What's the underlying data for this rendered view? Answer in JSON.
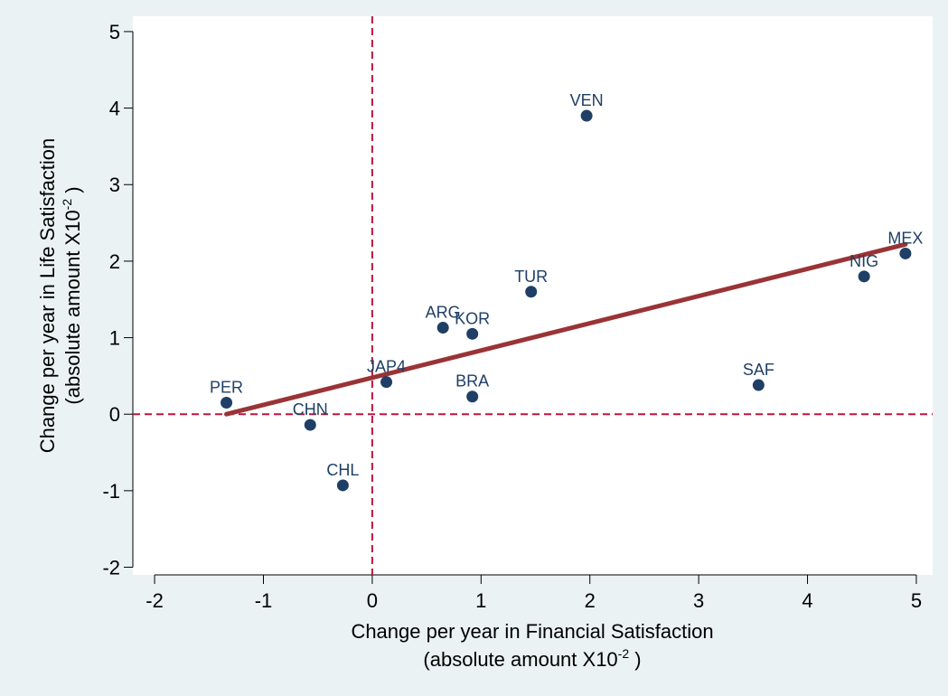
{
  "chart_data": {
    "type": "scatter",
    "title": "",
    "xlabel": "Change per year in Financial Satisfaction",
    "xlabel_sub_prefix": "(absolute amount  X10",
    "xlabel_sub_exp": "-2",
    "xlabel_sub_suffix": " )",
    "ylabel": "Change per year in Life Satisfaction",
    "ylabel_sub_prefix": "(absolute amount X10",
    "ylabel_sub_exp": "-2",
    "ylabel_sub_suffix": " )",
    "xlim": [
      -2.2,
      5.15
    ],
    "ylim": [
      -2.1,
      5.2
    ],
    "xticks": [
      -2,
      -1,
      0,
      1,
      2,
      3,
      4,
      5
    ],
    "yticks": [
      -2,
      -1,
      0,
      1,
      2,
      3,
      4,
      5
    ],
    "grid": false,
    "reference_lines": {
      "x": 0,
      "y": 0,
      "color": "#c0143c",
      "style": "dashed"
    },
    "points": [
      {
        "label": "PER",
        "x": -1.34,
        "y": 0.15
      },
      {
        "label": "CHN",
        "x": -0.57,
        "y": -0.14
      },
      {
        "label": "CHL",
        "x": -0.27,
        "y": -0.93
      },
      {
        "label": "JAP4",
        "x": 0.13,
        "y": 0.42
      },
      {
        "label": "ARG",
        "x": 0.65,
        "y": 1.13
      },
      {
        "label": "KOR",
        "x": 0.92,
        "y": 1.05
      },
      {
        "label": "BRA",
        "x": 0.92,
        "y": 0.23
      },
      {
        "label": "TUR",
        "x": 1.46,
        "y": 1.6
      },
      {
        "label": "VEN",
        "x": 1.97,
        "y": 3.9
      },
      {
        "label": "SAF",
        "x": 3.55,
        "y": 0.38
      },
      {
        "label": "NIG",
        "x": 4.52,
        "y": 1.8
      },
      {
        "label": "MEX",
        "x": 4.9,
        "y": 2.1
      }
    ],
    "fit_line": {
      "x": [
        -1.34,
        4.9
      ],
      "y": [
        0.0,
        2.22
      ],
      "color": "#9a3336"
    },
    "colors": {
      "marker": "#1f3f66",
      "label": "#1f3f66",
      "background": "#eaf2f3",
      "plot_background": "#ffffff",
      "axis": "#000000"
    }
  }
}
